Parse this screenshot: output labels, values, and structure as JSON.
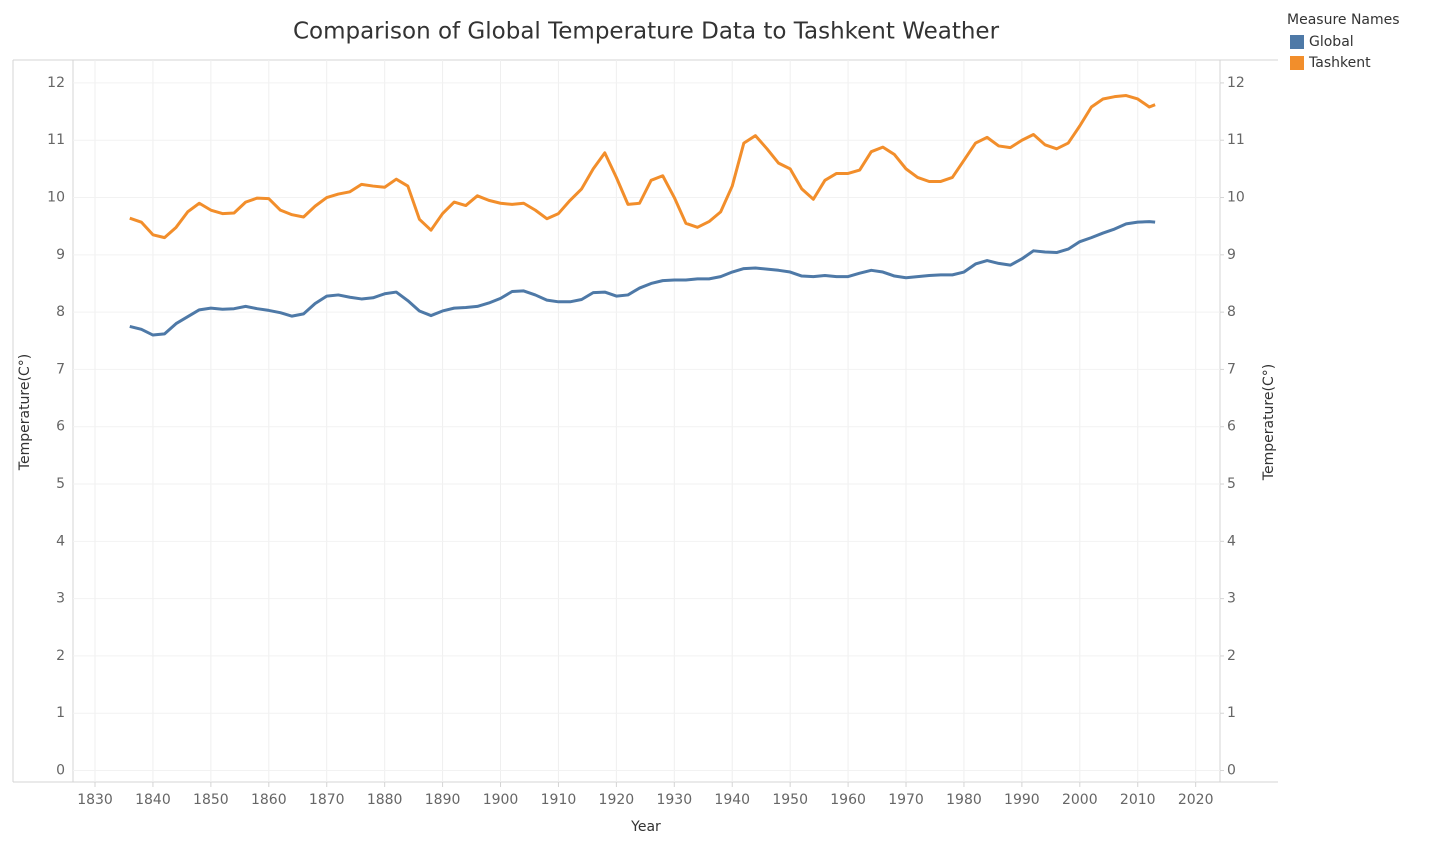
{
  "chart_data": {
    "type": "line",
    "title": "Comparison of Global Temperature Data to Tashkent Weather",
    "x_label": "Year",
    "y_label": "Temperature(C°)",
    "y2_label": "Temperature(C°)",
    "legend_title": "Measure Names",
    "legend_position": "top-right",
    "grid": true,
    "x": [
      1836,
      1838,
      1840,
      1842,
      1844,
      1846,
      1848,
      1850,
      1852,
      1854,
      1856,
      1858,
      1860,
      1862,
      1864,
      1866,
      1868,
      1870,
      1872,
      1874,
      1876,
      1878,
      1880,
      1882,
      1884,
      1886,
      1888,
      1890,
      1892,
      1894,
      1896,
      1898,
      1900,
      1902,
      1904,
      1906,
      1908,
      1910,
      1912,
      1914,
      1916,
      1918,
      1920,
      1922,
      1924,
      1926,
      1928,
      1930,
      1932,
      1934,
      1936,
      1938,
      1940,
      1942,
      1944,
      1946,
      1948,
      1950,
      1952,
      1954,
      1956,
      1958,
      1960,
      1962,
      1964,
      1966,
      1968,
      1970,
      1972,
      1974,
      1976,
      1978,
      1980,
      1982,
      1984,
      1986,
      1988,
      1990,
      1992,
      1994,
      1996,
      1998,
      2000,
      2002,
      2004,
      2006,
      2008,
      2010,
      2012,
      2013
    ],
    "series": [
      {
        "name": "Global",
        "color": "#4e79a7",
        "values": [
          7.75,
          7.7,
          7.6,
          7.62,
          7.8,
          7.92,
          8.04,
          8.07,
          8.05,
          8.06,
          8.1,
          8.06,
          8.03,
          7.99,
          7.93,
          7.97,
          8.15,
          8.28,
          8.3,
          8.26,
          8.23,
          8.25,
          8.32,
          8.35,
          8.2,
          8.02,
          7.94,
          8.02,
          8.07,
          8.08,
          8.1,
          8.16,
          8.24,
          8.36,
          8.37,
          8.3,
          8.21,
          8.18,
          8.18,
          8.22,
          8.34,
          8.35,
          8.28,
          8.3,
          8.42,
          8.5,
          8.55,
          8.56,
          8.56,
          8.58,
          8.58,
          8.62,
          8.7,
          8.76,
          8.77,
          8.75,
          8.73,
          8.7,
          8.63,
          8.62,
          8.64,
          8.62,
          8.62,
          8.68,
          8.73,
          8.7,
          8.63,
          8.6,
          8.62,
          8.64,
          8.65,
          8.65,
          8.7,
          8.84,
          8.9,
          8.85,
          8.82,
          8.93,
          9.07,
          9.05,
          9.04,
          9.1,
          9.23,
          9.3,
          9.38,
          9.45,
          9.54,
          9.57,
          9.58,
          9.57
        ]
      },
      {
        "name": "Tashkent",
        "color": "#f28e2b",
        "axis": "y2",
        "values": [
          9.64,
          9.57,
          9.35,
          9.3,
          9.48,
          9.75,
          9.9,
          9.78,
          9.72,
          9.73,
          9.92,
          9.99,
          9.98,
          9.78,
          9.7,
          9.66,
          9.85,
          10.0,
          10.06,
          10.1,
          10.23,
          10.2,
          10.18,
          10.32,
          10.2,
          9.62,
          9.43,
          9.72,
          9.92,
          9.86,
          10.03,
          9.95,
          9.9,
          9.88,
          9.9,
          9.78,
          9.63,
          9.72,
          9.95,
          10.15,
          10.5,
          10.78,
          10.35,
          9.88,
          9.9,
          10.3,
          10.38,
          10.0,
          9.55,
          9.48,
          9.58,
          9.75,
          10.2,
          10.95,
          11.08,
          10.85,
          10.6,
          10.5,
          10.15,
          9.97,
          10.3,
          10.42,
          10.42,
          10.48,
          10.8,
          10.88,
          10.75,
          10.5,
          10.35,
          10.28,
          10.28,
          10.35,
          10.65,
          10.95,
          11.05,
          10.9,
          10.87,
          11.0,
          11.1,
          10.92,
          10.85,
          10.95,
          11.25,
          11.58,
          11.72,
          11.76,
          11.78,
          11.72,
          11.58,
          11.62
        ]
      }
    ],
    "xlim": [
      1826.2,
      2024.2
    ],
    "xticks": [
      1830,
      1840,
      1850,
      1860,
      1870,
      1880,
      1890,
      1900,
      1910,
      1920,
      1930,
      1940,
      1950,
      1960,
      1970,
      1980,
      1990,
      2000,
      2010,
      2020
    ],
    "ylim": [
      -0.2,
      12.4
    ],
    "yticks": [
      0,
      1,
      2,
      3,
      4,
      5,
      6,
      7,
      8,
      9,
      10,
      11,
      12
    ],
    "y2lim": [
      -0.2,
      12.4
    ],
    "y2ticks": [
      0,
      1,
      2,
      3,
      4,
      5,
      6,
      7,
      8,
      9,
      10,
      11,
      12
    ]
  }
}
